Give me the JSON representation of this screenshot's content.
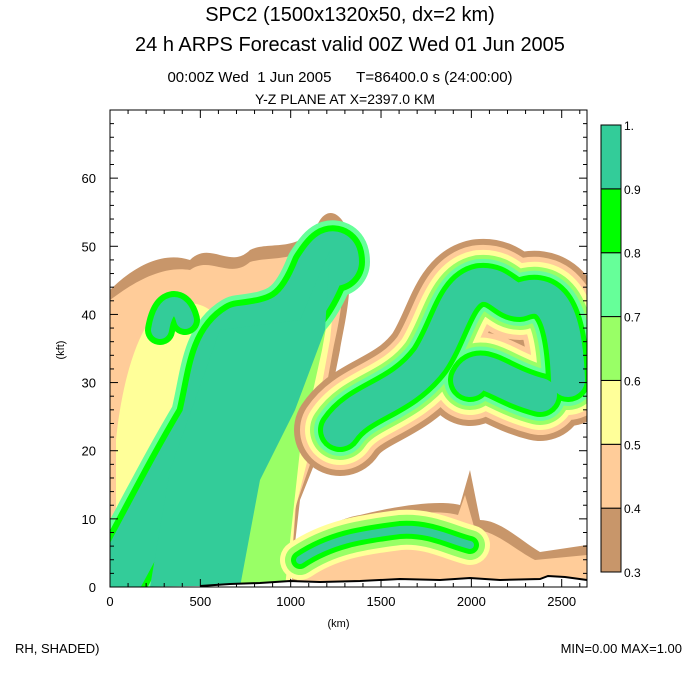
{
  "header": {
    "title1": "SPC2 (1500x1320x50, dx=2 km)",
    "title2": "24 h ARPS Forecast valid 00Z Wed 01 Jun 2005",
    "subtitle1": "00:00Z Wed  1 Jun 2005      T=86400.0 s (24:00:00)",
    "subtitle2": "Y-Z PLANE AT X=2397.0 KM"
  },
  "footer": {
    "left": "RH, SHADED)",
    "right": "MIN=0.00 MAX=1.00"
  },
  "chart_data": {
    "type": "heatmap",
    "title": "Y-Z PLANE AT X=2397.0 KM",
    "variable": "RH",
    "xlabel": "(km)",
    "ylabel": "(kft)",
    "xlim": [
      0,
      2640
    ],
    "ylim": [
      0,
      70
    ],
    "xticks": [
      0,
      500,
      1000,
      1500,
      2000,
      2500
    ],
    "yticks": [
      0,
      10,
      20,
      30,
      40,
      50,
      60
    ],
    "xtick_labels": [
      "0",
      "500",
      "1000",
      "1500",
      "2000",
      "2500"
    ],
    "ytick_labels": [
      "0",
      "10",
      "20",
      "30",
      "40",
      "50",
      "60"
    ],
    "colorbar": {
      "levels": [
        0.3,
        0.4,
        0.5,
        0.6,
        0.7,
        0.8,
        0.9,
        1.0
      ],
      "labels": [
        "0.3",
        "0.4",
        "0.5",
        "0.6",
        "0.7",
        "0.8",
        "0.9",
        "1."
      ],
      "colors": [
        "#c8966a",
        "#ffcc99",
        "#ffff99",
        "#99ff66",
        "#66ff99",
        "#00ff00",
        "#33cc99"
      ]
    },
    "min": 0.0,
    "max": 1.0
  }
}
